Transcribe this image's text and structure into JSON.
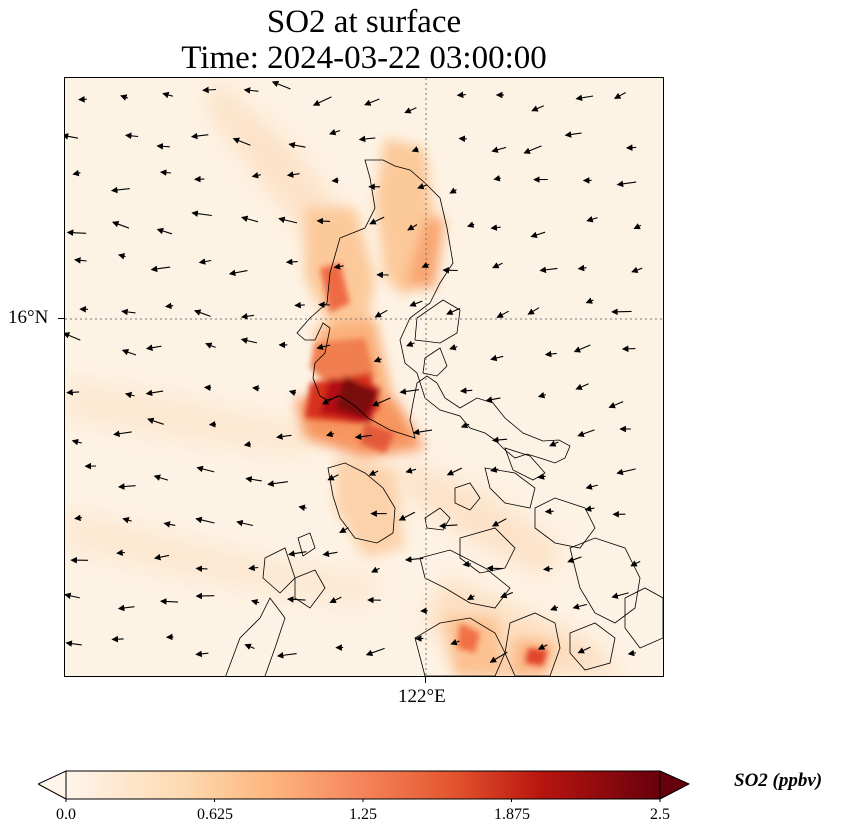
{
  "title_line1": "SO2 at surface",
  "title_line2": "Time: 2024-03-22 03:00:00",
  "lat_label": "16°N",
  "lon_label": "122°E",
  "colorbar": {
    "label": "SO2 (ppbv)",
    "min": 0.0,
    "max": 2.5,
    "ticks": [
      "0.0",
      "0.625",
      "1.25",
      "1.875",
      "2.5"
    ],
    "colors": [
      "#fff5eb",
      "#fdd0a2",
      "#fdae6b",
      "#f16913",
      "#d94801",
      "#a50f15",
      "#67000d"
    ],
    "extend": "both"
  },
  "map": {
    "gridlines": "dotted",
    "coastline_color": "#000000",
    "wind_vectors": "black arrows, predominantly westward"
  }
}
